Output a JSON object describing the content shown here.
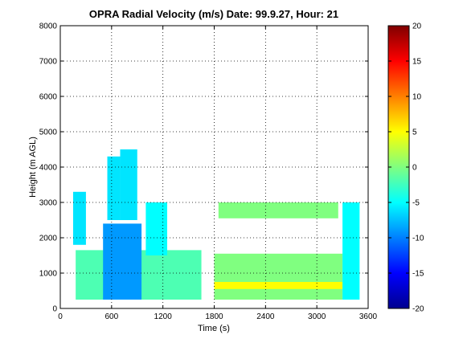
{
  "chart_data": {
    "type": "heatmap",
    "title": "OPRA Radial Velocity (m/s)  Date: 99.9.27, Hour: 21",
    "xlabel": "Time (s)",
    "ylabel": "Height (m AGL)",
    "xlim": [
      0,
      3600
    ],
    "ylim": [
      0,
      8000
    ],
    "xticks": [
      0,
      600,
      1200,
      1800,
      2400,
      3000,
      3600
    ],
    "yticks": [
      0,
      1000,
      2000,
      3000,
      4000,
      5000,
      6000,
      7000,
      8000
    ],
    "grid": true,
    "colormap": "jet",
    "colorbar": {
      "min": -20,
      "max": 20,
      "ticks": [
        20,
        15,
        10,
        5,
        0,
        -5,
        -10,
        -15,
        -20
      ]
    },
    "regions": [
      {
        "time": [
          180,
          1650
        ],
        "height": [
          250,
          1650
        ],
        "velocity": -2
      },
      {
        "time": [
          500,
          950
        ],
        "height": [
          250,
          2400
        ],
        "velocity": -9
      },
      {
        "time": [
          150,
          300
        ],
        "height": [
          1800,
          3300
        ],
        "velocity": -6
      },
      {
        "time": [
          550,
          700
        ],
        "height": [
          2500,
          4300
        ],
        "velocity": -6
      },
      {
        "time": [
          700,
          900
        ],
        "height": [
          2500,
          4500
        ],
        "velocity": -6
      },
      {
        "time": [
          1000,
          1250
        ],
        "height": [
          1500,
          3000
        ],
        "velocity": -5
      },
      {
        "time": [
          1800,
          3300
        ],
        "height": [
          250,
          1550
        ],
        "velocity": 0
      },
      {
        "time": [
          1800,
          3300
        ],
        "height": [
          550,
          750
        ],
        "velocity": 5
      },
      {
        "time": [
          1850,
          3250
        ],
        "height": [
          2550,
          3000
        ],
        "velocity": 0
      },
      {
        "time": [
          3300,
          3500
        ],
        "height": [
          250,
          3000
        ],
        "velocity": -5
      }
    ]
  }
}
